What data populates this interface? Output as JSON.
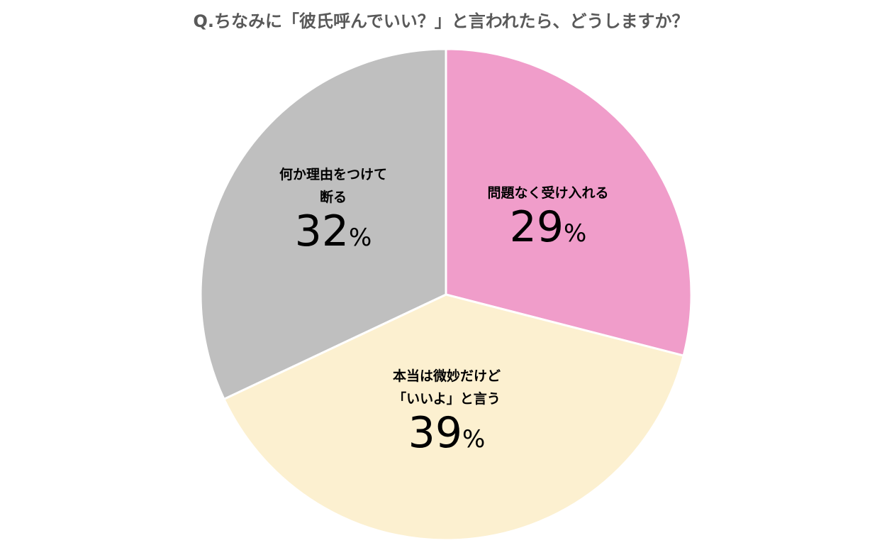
{
  "chart_data": {
    "type": "pie",
    "title": "Q.ちなみに「彼氏呼んでいい？」と言われたら、どうしますか？",
    "start_angle_deg": 0,
    "direction": "clockwise",
    "slices": [
      {
        "label_lines": [
          "問題なく受け入れる"
        ],
        "value": 29,
        "color": "#F09DCA"
      },
      {
        "label_lines": [
          "本当は微妙だけど",
          "「いいよ」と言う"
        ],
        "value": 39,
        "color": "#FCF0D0"
      },
      {
        "label_lines": [
          "何か理由をつけて",
          "断る"
        ],
        "value": 32,
        "color": "#BFBFBF"
      }
    ],
    "percent_sign": "%"
  }
}
